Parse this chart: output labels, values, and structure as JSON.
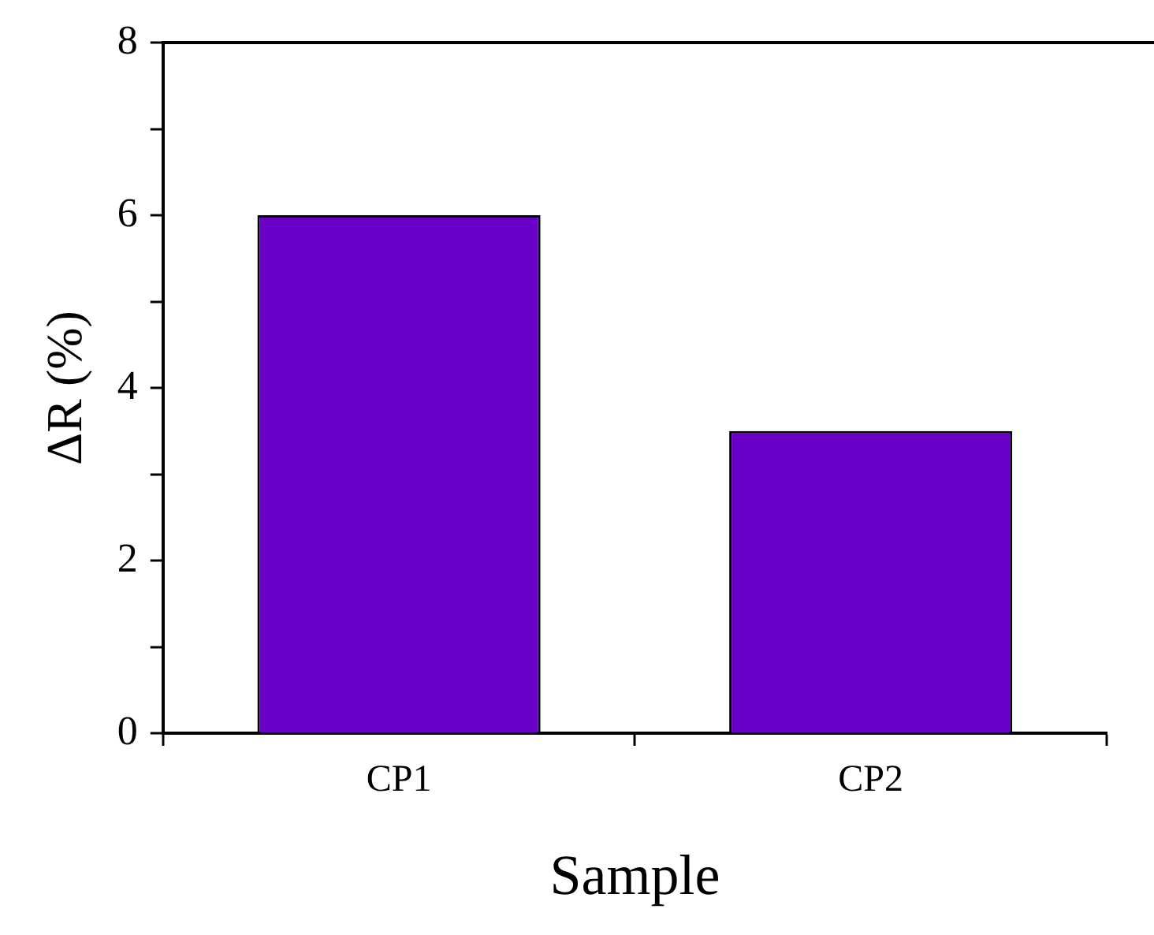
{
  "chart_data": {
    "type": "bar",
    "xlabel": "Sample",
    "ylabel": "ΔR (%)",
    "categories": [
      "CP1",
      "CP2"
    ],
    "values": [
      6.0,
      3.5
    ],
    "color": "#6a00c8",
    "ylim": [
      0,
      8
    ],
    "yticks": [
      0,
      2,
      4,
      6,
      8
    ],
    "grid": false,
    "legend": false
  }
}
